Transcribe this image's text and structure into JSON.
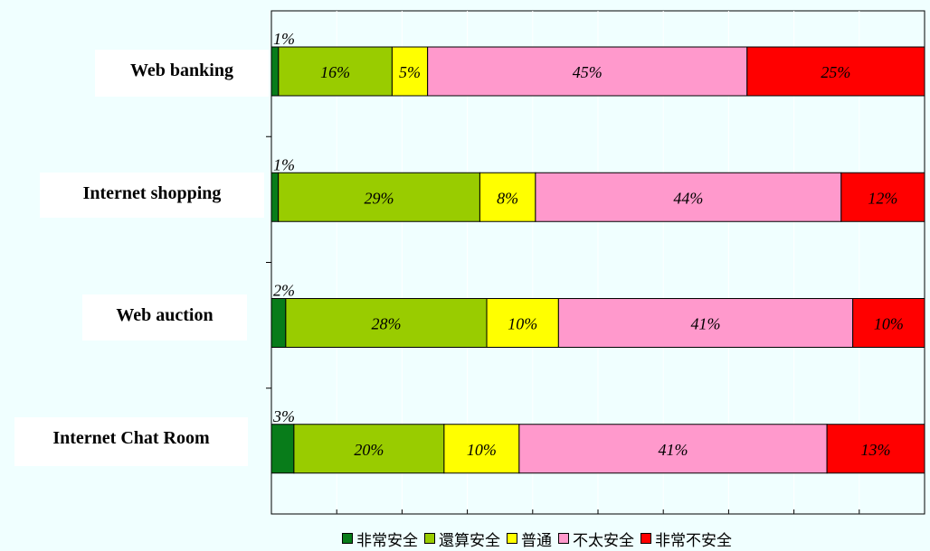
{
  "chart_data": {
    "type": "bar",
    "orientation": "horizontal",
    "stacked": "percent",
    "categories": [
      "Web banking",
      "Internet shopping",
      "Web auction",
      "Internet Chat Room"
    ],
    "series": [
      {
        "name": "非常安全",
        "color": "#087c1a",
        "values": [
          1,
          1,
          2,
          3
        ],
        "labels": [
          "1%",
          "1%",
          "2%",
          "3%"
        ]
      },
      {
        "name": "還算安全",
        "color": "#99cc00",
        "values": [
          16,
          29,
          28,
          20
        ],
        "labels": [
          "16%",
          "29%",
          "28%",
          "20%"
        ]
      },
      {
        "name": "普通",
        "color": "#ffff00",
        "values": [
          5,
          8,
          10,
          10
        ],
        "labels": [
          "5%",
          "8%",
          "10%",
          "10%"
        ]
      },
      {
        "name": "不太安全",
        "color": "#ff99cc",
        "values": [
          45,
          44,
          41,
          41
        ],
        "labels": [
          "45%",
          "44%",
          "41%",
          "41%"
        ]
      },
      {
        "name": "非常不安全",
        "color": "#ff0000",
        "values": [
          25,
          12,
          10,
          13
        ],
        "labels": [
          "25%",
          "12%",
          "10%",
          "13%"
        ]
      }
    ],
    "xlim": [
      0,
      100
    ],
    "grid": true,
    "legend": "bottom"
  }
}
